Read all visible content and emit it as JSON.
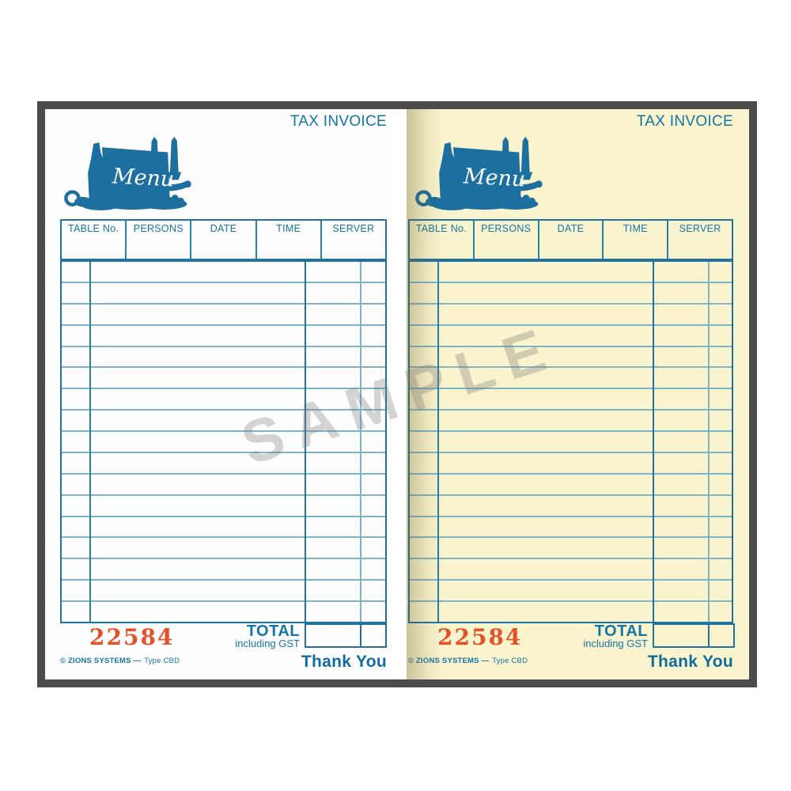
{
  "watermark_text": "SAMPLE",
  "form": {
    "title": "TAX INVOICE",
    "menu_sign_text": "Menu",
    "header_columns": [
      "TABLE No.",
      "PERSONS",
      "DATE",
      "TIME",
      "SERVER"
    ],
    "body_rows": 17,
    "serial_number": "22584",
    "total_label": "TOTAL",
    "total_sublabel": "including GST",
    "footer_brand": "© ZIONS SYSTEMS —",
    "footer_type": "Type  CBD",
    "thank_you": "Thank You"
  },
  "sheets": [
    {
      "variant": "white"
    },
    {
      "variant": "cream"
    }
  ],
  "colors": {
    "ink_blue": "#1474a6",
    "line_dark": "#1f739e",
    "line_light": "#7fb3c8",
    "illustration_blue": "#1c6f9e",
    "serial_red": "#e2532a",
    "copy_cream": "#f9f4cd",
    "frame_gray": "#4b4b4b",
    "watermark_gray": "#7d7d7d"
  }
}
